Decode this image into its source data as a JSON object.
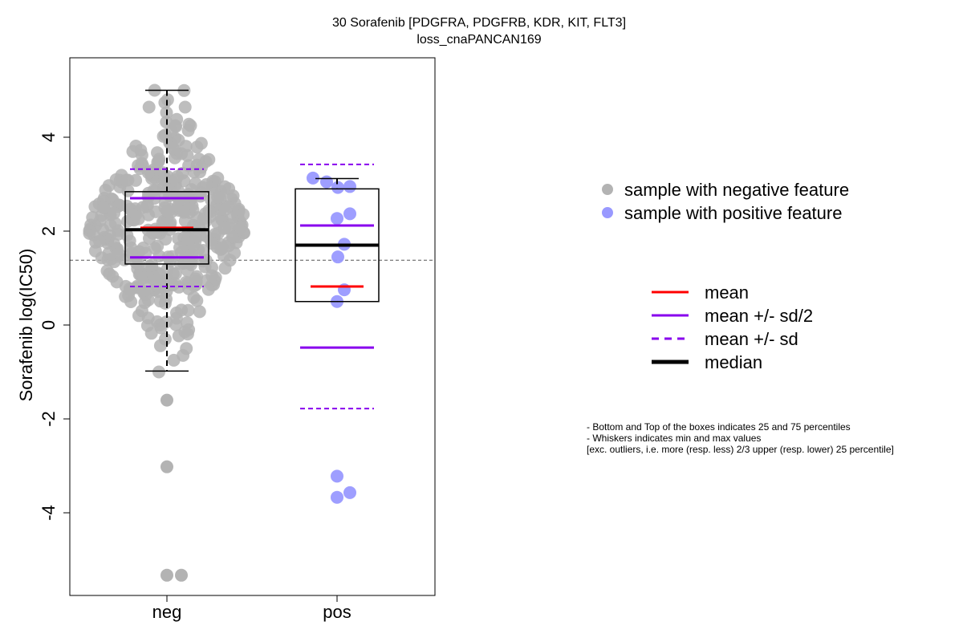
{
  "chart_data": {
    "type": "scatter",
    "title": "30 Sorafenib [PDGFRA, PDGFRB, KDR, KIT, FLT3]",
    "subtitle": "loss_cnaPANCAN169",
    "ylabel": "Sorafenib log(IC50)",
    "categories": [
      "neg",
      "pos"
    ],
    "ylim": [
      -5.75,
      5.75
    ],
    "yticks": [
      "-4",
      "-2",
      "0",
      "2",
      "4"
    ],
    "reference_line": 1.38,
    "groups": [
      {
        "name": "neg",
        "color": "#b3b3b3",
        "box": {
          "q1": 1.3,
          "median": 2.03,
          "q3": 2.84,
          "whisker_low": -0.98,
          "whisker_high": 5.0
        },
        "mean": 2.07,
        "mean_sd2": [
          1.44,
          2.7
        ],
        "mean_sd": [
          0.82,
          3.32
        ],
        "outliers": [
          -1.6,
          -3.02,
          -5.33,
          -5.33
        ],
        "n_points": 420
      },
      {
        "name": "pos",
        "color": "#9999ff",
        "box": {
          "q1": 0.5,
          "median": 1.7,
          "q3": 2.9,
          "whisker_low": 0.5,
          "whisker_high": 3.12
        },
        "mean": 0.82,
        "mean_sd2": [
          -0.48,
          2.12
        ],
        "mean_sd": [
          -1.78,
          3.42
        ],
        "points": [
          3.13,
          3.05,
          2.93,
          2.95,
          2.37,
          2.27,
          1.72,
          1.45,
          0.75,
          0.5,
          -3.22,
          -3.57,
          -3.67
        ]
      }
    ],
    "legend": {
      "points": [
        {
          "label": "sample with negative feature",
          "color": "#b3b3b3"
        },
        {
          "label": "sample with positive feature",
          "color": "#9999ff"
        }
      ],
      "lines": [
        {
          "label": "mean",
          "color": "#ff0000",
          "style": "solid"
        },
        {
          "label": "mean +/- sd/2",
          "color": "#8800ee",
          "style": "solid"
        },
        {
          "label": "mean +/- sd",
          "color": "#8800ee",
          "style": "dashed"
        },
        {
          "label": "median",
          "color": "#000000",
          "style": "bold"
        }
      ]
    },
    "notes": [
      "- Bottom and Top of the boxes indicates 25 and 75 percentiles",
      "- Whiskers indicates min and max values",
      "[exc. outliers, i.e. more (resp. less) 2/3 upper (resp. lower) 25 percentile]"
    ]
  }
}
